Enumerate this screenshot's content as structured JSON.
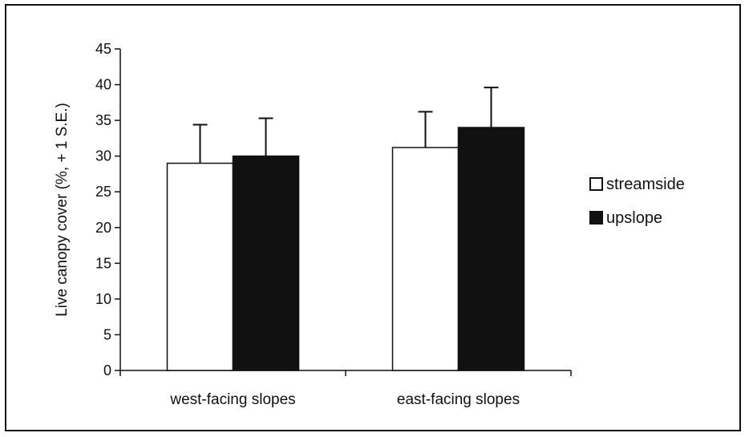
{
  "chart_data": {
    "type": "bar",
    "title": "",
    "xlabel": "",
    "ylabel": "Live canopy cover (%, + 1 S.E.)",
    "ylim": [
      0,
      45
    ],
    "yticks": [
      0,
      5,
      10,
      15,
      20,
      25,
      30,
      35,
      40,
      45
    ],
    "categories": [
      "west-facing slopes",
      "east-facing slopes"
    ],
    "series": [
      {
        "name": "streamside",
        "values": [
          29.0,
          31.2
        ],
        "errors": [
          5.4,
          5.0
        ],
        "color": "#ffffff"
      },
      {
        "name": "upslope",
        "values": [
          30.0,
          34.0
        ],
        "errors": [
          5.3,
          5.6
        ],
        "color": "#111111"
      }
    ],
    "legend_position": "right",
    "grid": false
  }
}
